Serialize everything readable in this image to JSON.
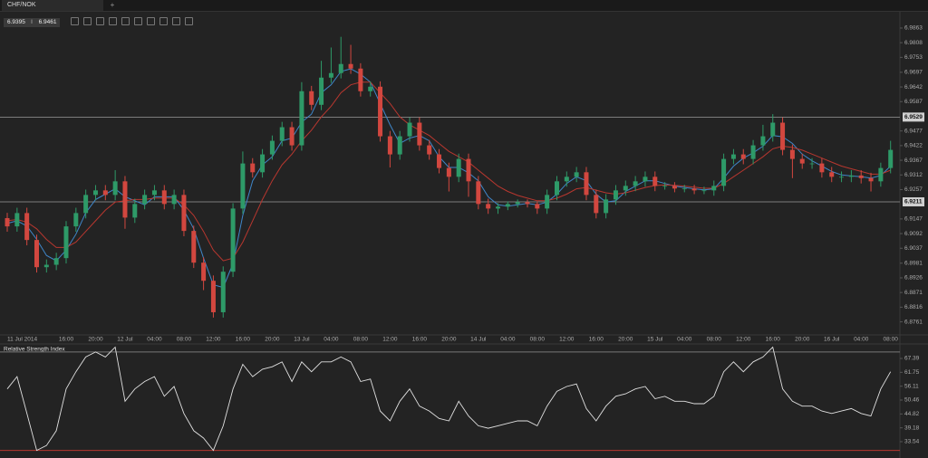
{
  "tab": {
    "label": "CHF/NOK",
    "add": "+"
  },
  "quote": {
    "bid": 6.9395,
    "ask": 6.9461
  },
  "chart_data": [
    {
      "type": "candlestick",
      "categories": [
        "11 Jul 2014",
        null,
        null,
        null,
        null,
        null,
        "16:00",
        null,
        null,
        "20:00",
        null,
        null,
        "12 Jul",
        null,
        null,
        "04:00",
        null,
        null,
        "08:00",
        null,
        null,
        "12:00",
        null,
        null,
        "16:00",
        null,
        null,
        "20:00",
        null,
        null,
        "13 Jul",
        null,
        null,
        "04:00",
        null,
        null,
        "08:00",
        null,
        null,
        "12:00",
        null,
        null,
        "16:00",
        null,
        null,
        "20:00",
        null,
        null,
        "14 Jul",
        null,
        null,
        "04:00",
        null,
        null,
        "08:00",
        null,
        null,
        "12:00",
        null,
        null,
        "16:00",
        null,
        null,
        "20:00",
        null,
        null,
        "15 Jul",
        null,
        null,
        "04:00",
        null,
        null,
        "08:00",
        null,
        null,
        "12:00",
        null,
        null,
        "16:00",
        null,
        null,
        "20:00",
        null,
        null,
        "16 Jul",
        null,
        null,
        "04:00",
        null,
        null,
        "08:00"
      ],
      "open": [
        6.915,
        6.9119,
        6.9169,
        6.9068,
        6.8966,
        6.8975,
        6.9,
        6.9119,
        6.9169,
        6.9237,
        6.9254,
        6.9237,
        6.9288,
        6.9152,
        6.9203,
        6.9237,
        6.9254,
        6.9203,
        6.9237,
        6.9102,
        6.8983,
        6.8915,
        6.8797,
        6.8949,
        6.9186,
        6.9355,
        6.9322,
        6.9389,
        6.944,
        6.9491,
        6.9423,
        6.9626,
        6.9575,
        6.9677,
        6.9694,
        6.9728,
        6.9711,
        6.9626,
        6.9643,
        6.9457,
        6.9389,
        6.9457,
        6.9508,
        6.9423,
        6.9389,
        6.9338,
        6.9305,
        6.9372,
        6.9288,
        6.9203,
        6.9186,
        6.9193,
        6.9203,
        6.921,
        6.9203,
        6.9186,
        6.9237,
        6.9288,
        6.9305,
        6.9322,
        6.9237,
        6.9169,
        6.922,
        6.9254,
        6.9271,
        6.9288,
        6.9305,
        6.9271,
        6.9271,
        6.9261,
        6.9261,
        6.9254,
        6.9254,
        6.9271,
        6.9372,
        6.9389,
        6.9372,
        6.9423,
        6.9457,
        6.9508,
        6.9406,
        6.9372,
        6.9355,
        6.9355,
        6.9322,
        6.9305,
        6.9305,
        6.931,
        6.93,
        6.9288,
        6.9338
      ],
      "high": [
        6.917,
        6.9189,
        6.9189,
        6.9088,
        6.8995,
        6.902,
        6.9139,
        6.9189,
        6.9257,
        6.9274,
        6.9274,
        6.933,
        6.9308,
        6.9223,
        6.9257,
        6.9274,
        6.9274,
        6.9257,
        6.9257,
        6.9122,
        6.9003,
        6.8935,
        6.8969,
        6.9206,
        6.94,
        6.9375,
        6.9409,
        6.946,
        6.9511,
        6.9511,
        6.966,
        6.9646,
        6.974,
        6.979,
        6.983,
        6.98,
        6.9731,
        6.9663,
        6.9663,
        6.9477,
        6.9477,
        6.9528,
        6.9528,
        6.9443,
        6.9409,
        6.9358,
        6.9392,
        6.9392,
        6.9308,
        6.9223,
        6.9206,
        6.9213,
        6.922,
        6.922,
        6.9213,
        6.9257,
        6.9308,
        6.9325,
        6.9342,
        6.9342,
        6.9257,
        6.924,
        6.9274,
        6.9291,
        6.9308,
        6.9325,
        6.9325,
        6.9285,
        6.9285,
        6.9275,
        6.9275,
        6.9268,
        6.9291,
        6.9392,
        6.9409,
        6.9409,
        6.9443,
        6.95,
        6.954,
        6.9528,
        6.9426,
        6.9392,
        6.9375,
        6.9375,
        6.9342,
        6.9325,
        6.933,
        6.933,
        6.932,
        6.9358,
        6.944
      ],
      "low": [
        6.9099,
        6.9099,
        6.9048,
        6.8946,
        6.8946,
        6.8955,
        6.898,
        6.9099,
        6.9149,
        6.9217,
        6.9217,
        6.9217,
        6.911,
        6.9132,
        6.9183,
        6.9217,
        6.9183,
        6.9183,
        6.9082,
        6.8963,
        6.888,
        6.8777,
        6.8777,
        6.8929,
        6.9166,
        6.9302,
        6.9302,
        6.9369,
        6.942,
        6.9403,
        6.9403,
        6.9555,
        6.9555,
        6.9657,
        6.9674,
        6.9691,
        6.9606,
        6.9606,
        6.9437,
        6.934,
        6.9369,
        6.9437,
        6.9403,
        6.9369,
        6.9318,
        6.925,
        6.9285,
        6.923,
        6.9183,
        6.9166,
        6.9166,
        6.918,
        6.919,
        6.919,
        6.9166,
        6.9166,
        6.9217,
        6.9268,
        6.9285,
        6.9217,
        6.9149,
        6.9149,
        6.92,
        6.9234,
        6.9251,
        6.9268,
        6.9251,
        6.9257,
        6.9247,
        6.9247,
        6.924,
        6.924,
        6.9234,
        6.9251,
        6.9352,
        6.9352,
        6.9352,
        6.9403,
        6.9437,
        6.9386,
        6.93,
        6.9335,
        6.9335,
        6.9302,
        6.9285,
        6.9285,
        6.9285,
        6.928,
        6.925,
        6.9268,
        6.9318
      ],
      "close": [
        6.9119,
        6.9169,
        6.9068,
        6.8966,
        6.8975,
        6.9,
        6.9119,
        6.9169,
        6.9237,
        6.9254,
        6.9237,
        6.9288,
        6.9152,
        6.9203,
        6.9237,
        6.9254,
        6.9203,
        6.9237,
        6.9102,
        6.8983,
        6.8915,
        6.8797,
        6.8949,
        6.9186,
        6.9355,
        6.9322,
        6.9389,
        6.944,
        6.9491,
        6.9423,
        6.9626,
        6.9575,
        6.9677,
        6.9694,
        6.9728,
        6.9711,
        6.9626,
        6.9643,
        6.9457,
        6.9389,
        6.9457,
        6.9508,
        6.9423,
        6.9389,
        6.9338,
        6.9305,
        6.9372,
        6.9288,
        6.9203,
        6.9186,
        6.9193,
        6.9203,
        6.921,
        6.9203,
        6.9186,
        6.9237,
        6.9288,
        6.9305,
        6.9322,
        6.9237,
        6.9169,
        6.922,
        6.9254,
        6.9271,
        6.9288,
        6.9305,
        6.9271,
        6.9271,
        6.9261,
        6.9261,
        6.9254,
        6.9254,
        6.9271,
        6.9372,
        6.9389,
        6.9372,
        6.9423,
        6.9457,
        6.9508,
        6.9406,
        6.9372,
        6.9355,
        6.9355,
        6.9322,
        6.9305,
        6.9305,
        6.931,
        6.93,
        6.9288,
        6.9338,
        6.9406
      ],
      "up_color": "#2e9a68",
      "down_color": "#d2473f",
      "lines": [
        {
          "color": "#3f86c9",
          "values": [
            6.913,
            6.914,
            6.912,
            6.907,
            6.901,
            6.899,
            6.903,
            6.909,
            6.917,
            6.922,
            6.924,
            6.926,
            6.923,
            6.9215,
            6.92,
            6.923,
            6.923,
            6.923,
            6.918,
            6.911,
            6.9,
            6.89,
            6.889,
            6.898,
            6.916,
            6.929,
            6.935,
            6.938,
            6.944,
            6.945,
            6.951,
            6.954,
            6.962,
            6.965,
            6.97,
            6.971,
            6.969,
            6.966,
            6.958,
            6.95,
            6.943,
            6.945,
            6.946,
            6.944,
            6.938,
            6.934,
            6.934,
            6.932,
            6.929,
            6.923,
            6.92,
            6.9195,
            6.92,
            6.9205,
            6.92,
            6.921,
            6.924,
            6.928,
            6.9305,
            6.929,
            6.924,
            6.921,
            6.9215,
            6.925,
            6.927,
            6.929,
            6.929,
            6.928,
            6.927,
            6.9265,
            6.926,
            6.9256,
            6.926,
            6.93,
            6.9345,
            6.9375,
            6.9395,
            6.942,
            6.946,
            6.9455,
            6.943,
            6.939,
            6.9365,
            6.9345,
            6.9325,
            6.9312,
            6.9308,
            6.9305,
            6.93,
            6.931,
            6.9345
          ]
        },
        {
          "color": "#b8372f",
          "values": [
            6.914,
            6.9145,
            6.9135,
            6.911,
            6.907,
            6.904,
            6.904,
            6.906,
            6.91,
            6.914,
            6.918,
            6.921,
            6.9215,
            6.922,
            6.922,
            6.9225,
            6.9225,
            6.9225,
            6.92,
            6.916,
            6.91,
            6.903,
            6.899,
            6.9,
            6.906,
            6.914,
            6.922,
            6.929,
            6.935,
            6.939,
            6.944,
            6.948,
            6.953,
            6.957,
            6.962,
            6.965,
            6.966,
            6.966,
            6.962,
            6.958,
            6.953,
            6.95,
            6.948,
            6.946,
            6.943,
            6.94,
            6.938,
            6.936,
            6.933,
            6.93,
            6.927,
            6.925,
            6.9235,
            6.9225,
            6.9215,
            6.9215,
            6.9225,
            6.924,
            6.926,
            6.9265,
            6.9255,
            6.9245,
            6.924,
            6.9245,
            6.9255,
            6.9265,
            6.9272,
            6.9275,
            6.9273,
            6.927,
            6.9266,
            6.9262,
            6.9262,
            6.928,
            6.9305,
            6.933,
            6.9355,
            6.938,
            6.941,
            6.942,
            6.9415,
            6.9405,
            6.939,
            6.9375,
            6.936,
            6.9345,
            6.9335,
            6.9325,
            6.9315,
            6.9315,
            6.933
          ]
        }
      ],
      "hlines": [
        6.9529,
        6.9211
      ],
      "ylim": [
        6.8712,
        6.9924
      ],
      "yticks": [
        6.9863,
        6.9808,
        6.9753,
        6.9697,
        6.9642,
        6.9587,
        6.9477,
        6.9422,
        6.9367,
        6.9312,
        6.9257,
        6.9147,
        6.9092,
        6.9037,
        6.8981,
        6.8926,
        6.8871,
        6.8816,
        6.8761
      ]
    },
    {
      "type": "line",
      "title": "Relative Strength Index",
      "color": "#e0e0e0",
      "values": [
        55,
        60,
        45,
        30,
        32,
        38,
        55,
        62,
        68,
        70,
        68,
        72,
        50,
        55,
        58,
        60,
        52,
        56,
        45,
        38,
        35,
        30,
        40,
        55,
        65,
        60,
        63,
        64,
        66,
        58,
        66,
        62,
        66,
        66,
        68,
        66,
        58,
        59,
        46,
        42,
        50,
        55,
        48,
        46,
        43,
        42,
        50,
        44,
        40,
        39,
        40,
        41,
        42,
        42,
        40,
        48,
        54,
        56,
        57,
        47,
        42,
        48,
        52,
        53,
        55,
        56,
        51,
        52,
        50,
        50,
        49,
        49,
        52,
        62,
        66,
        62,
        66,
        68,
        72,
        55,
        50,
        48,
        48,
        46,
        45,
        46,
        47,
        45,
        44,
        55,
        62
      ],
      "levels": [
        {
          "value": 30,
          "color": "#b8372f"
        },
        {
          "value": 70,
          "color": "#777777"
        }
      ],
      "ylim": [
        28.38,
        72.55
      ],
      "yticks": [
        67.39,
        61.75,
        56.11,
        50.46,
        44.82,
        39.18,
        33.54
      ]
    }
  ]
}
